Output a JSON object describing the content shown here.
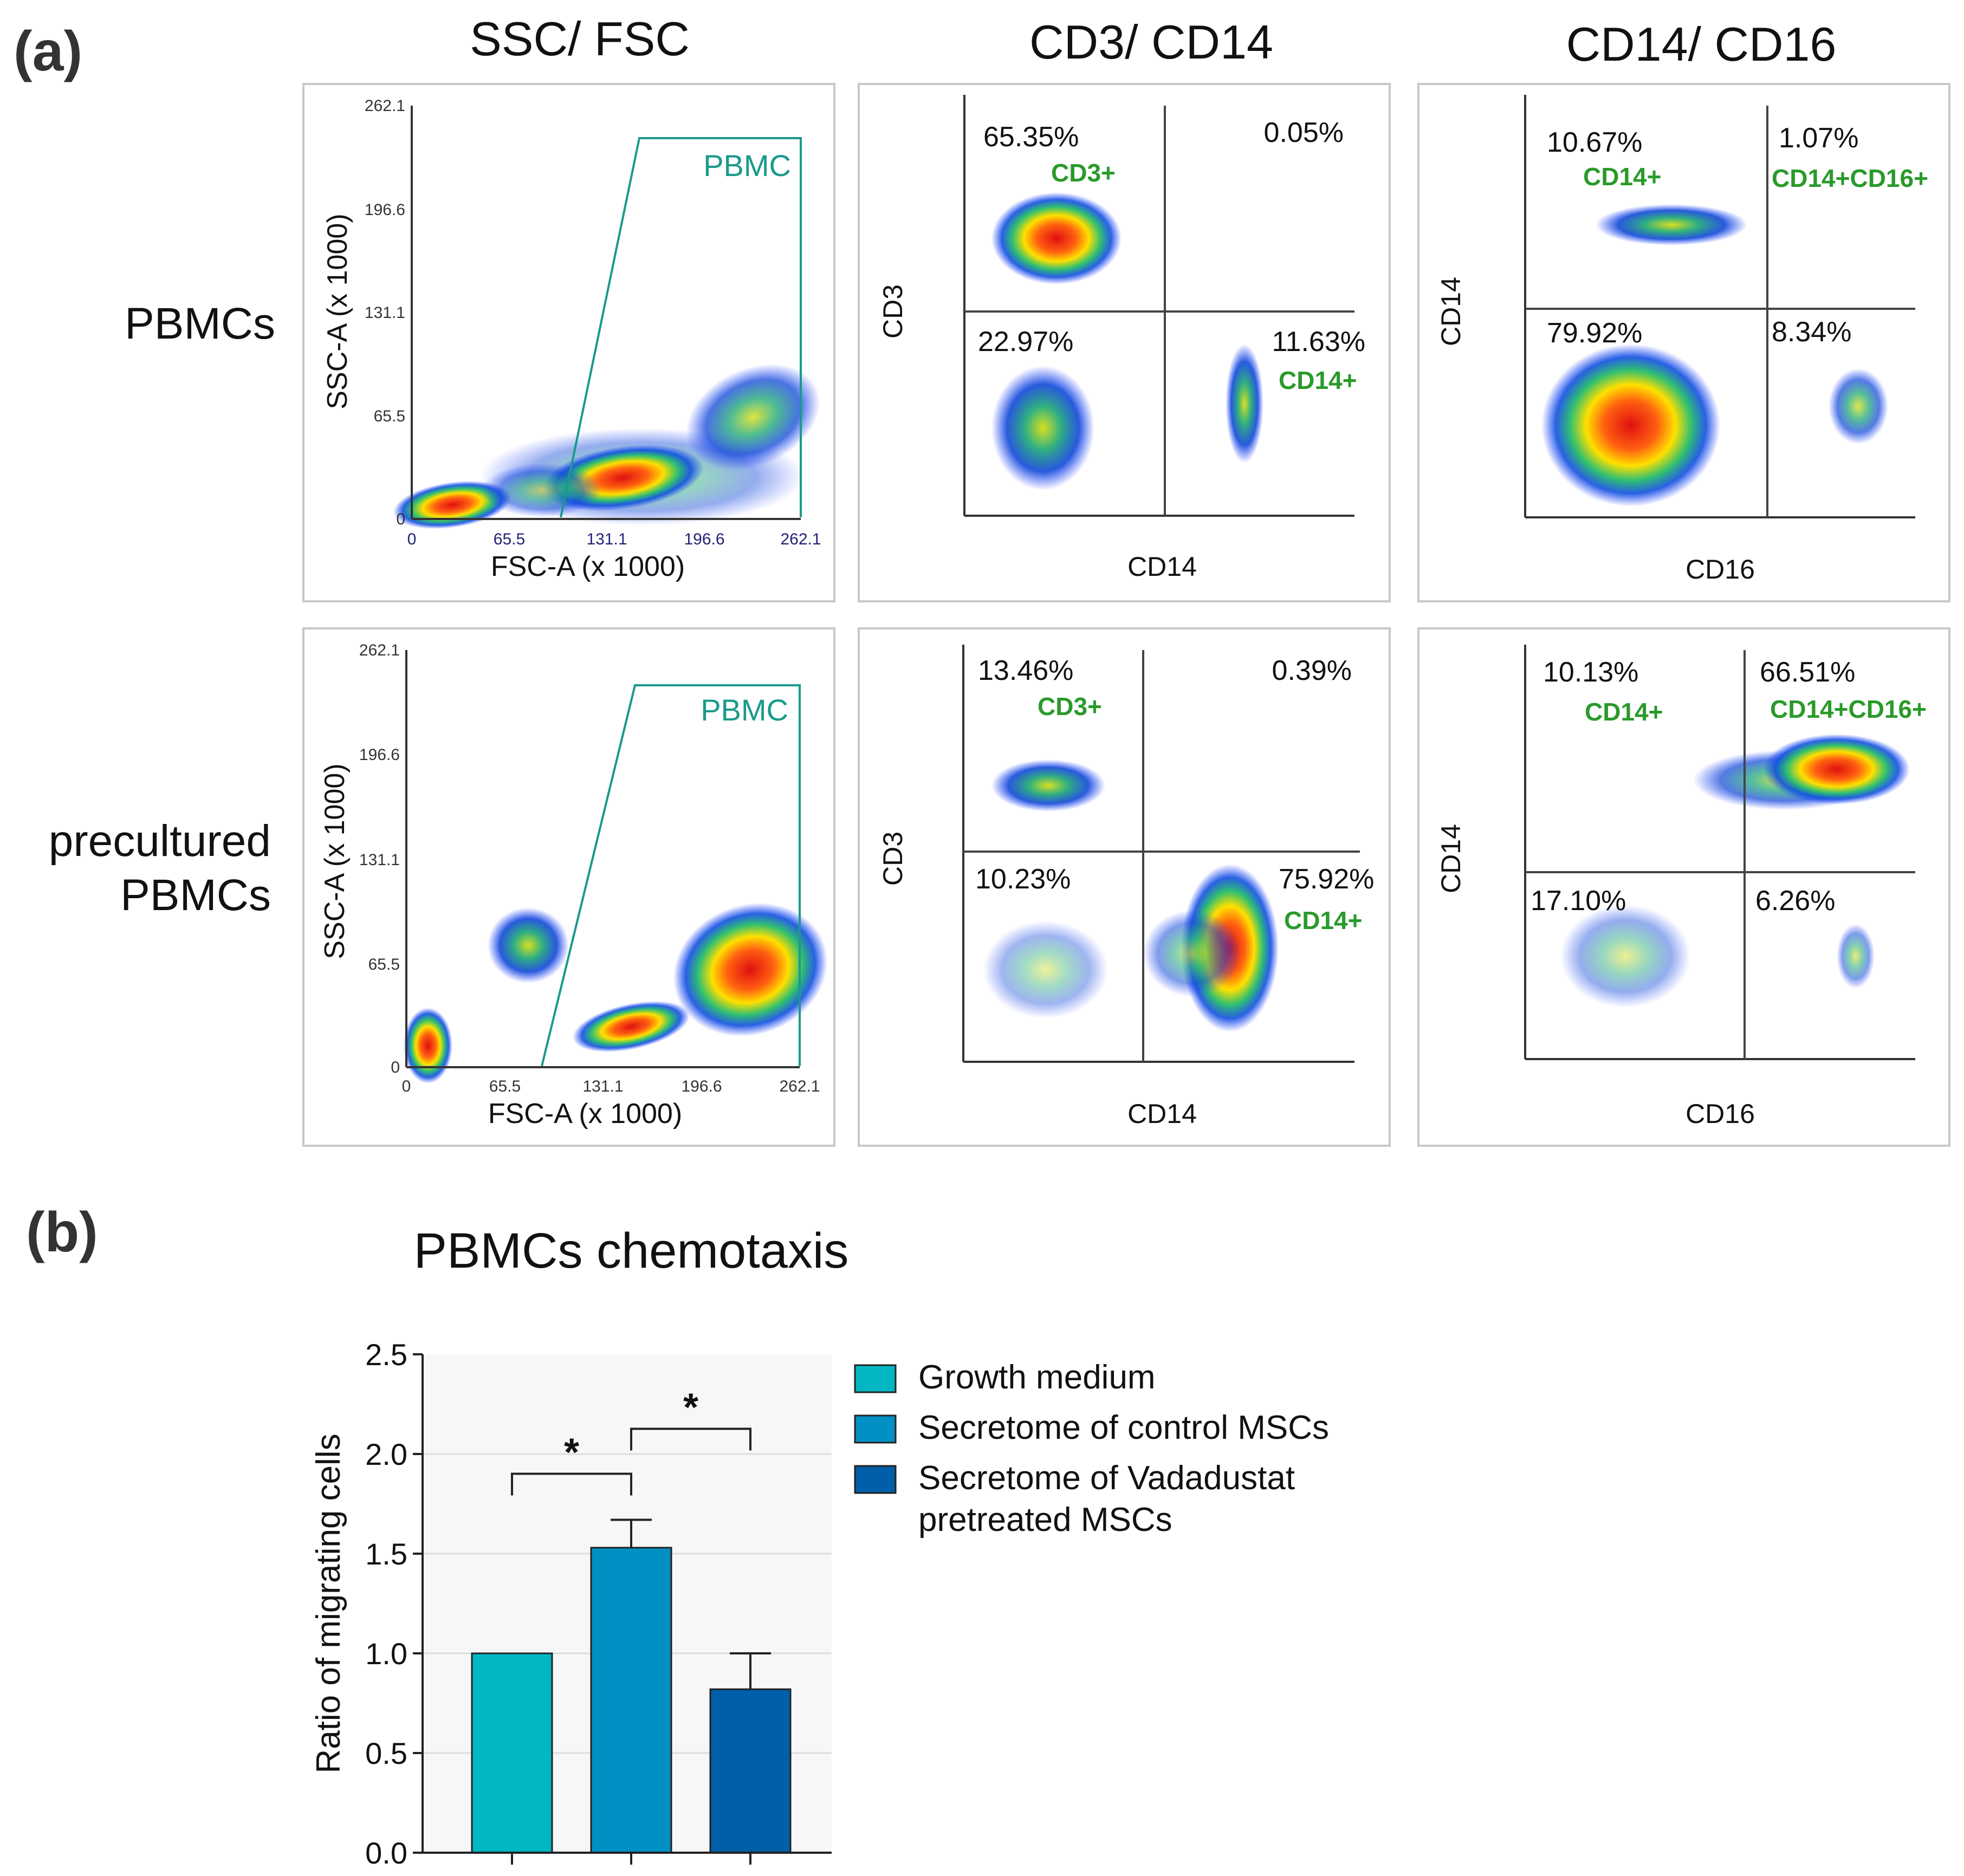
{
  "panel_a": {
    "label": "(a)",
    "column_titles": [
      "SSC/ FSC",
      "CD3/ CD14",
      "CD14/ CD16"
    ],
    "row_titles": [
      [
        "PBMCs"
      ],
      [
        "precultured",
        "PBMCs"
      ]
    ],
    "scatter_axes": {
      "xlabel": "FSC-A (x 1000)",
      "ylabel": "SSC-A (x 1000)",
      "ticks": [
        "0",
        "65.5",
        "131.1",
        "196.6",
        "262.1"
      ],
      "gate_label": "PBMC"
    },
    "cd3_axes": {
      "xlabel": "CD14",
      "ylabel": "CD3"
    },
    "cd16_axes": {
      "xlabel": "CD16",
      "ylabel": "CD14"
    },
    "quadrant_values": {
      "row1": {
        "cd3_cd14": {
          "ul": "65.35%",
          "ur": "0.05%",
          "ll": "22.97%",
          "lr": "11.63%",
          "ul_label": "CD3+",
          "lr_label": "CD14+"
        },
        "cd14_cd16": {
          "ul": "10.67%",
          "ur": "1.07%",
          "ll": "79.92%",
          "lr": "8.34%",
          "ul_label": "CD14+",
          "ur_label": "CD14+CD16+"
        }
      },
      "row2": {
        "cd3_cd14": {
          "ul": "13.46%",
          "ur": "0.39%",
          "ll": "10.23%",
          "lr": "75.92%",
          "ul_label": "CD3+",
          "lr_label": "CD14+"
        },
        "cd14_cd16": {
          "ul": "10.13%",
          "ur": "66.51%",
          "ll": "17.10%",
          "lr": "6.26%",
          "ul_label": "CD14+",
          "ur_label": "CD14+CD16+"
        }
      }
    }
  },
  "chart_data": {
    "type": "bar",
    "panel_label": "(b)",
    "title": "PBMCs chemotaxis",
    "ylabel": "Ratio of migrating cells",
    "xlabel": "",
    "ylim": [
      0,
      2.5
    ],
    "yticks": [
      "0.0",
      "0.5",
      "1.0",
      "1.5",
      "2.0",
      "2.5"
    ],
    "categories": [
      "Growth medium",
      "Secretome of control MSCs",
      "Secretome of Vadadustat pretreated MSCs"
    ],
    "values": [
      1.0,
      1.53,
      0.82
    ],
    "errors": [
      0.0,
      0.14,
      0.18
    ],
    "colors": [
      "#00b7c3",
      "#0090c4",
      "#005fa8"
    ],
    "legend": {
      "position": "right",
      "entries": [
        [
          "Growth medium"
        ],
        [
          "Secretome of control MSCs"
        ],
        [
          "Secretome of Vadadustat",
          "pretreated MSCs"
        ]
      ]
    },
    "significance": [
      {
        "pair": [
          0,
          1
        ],
        "label": "*"
      },
      {
        "pair": [
          1,
          2
        ],
        "label": "*"
      }
    ],
    "grid": true
  }
}
